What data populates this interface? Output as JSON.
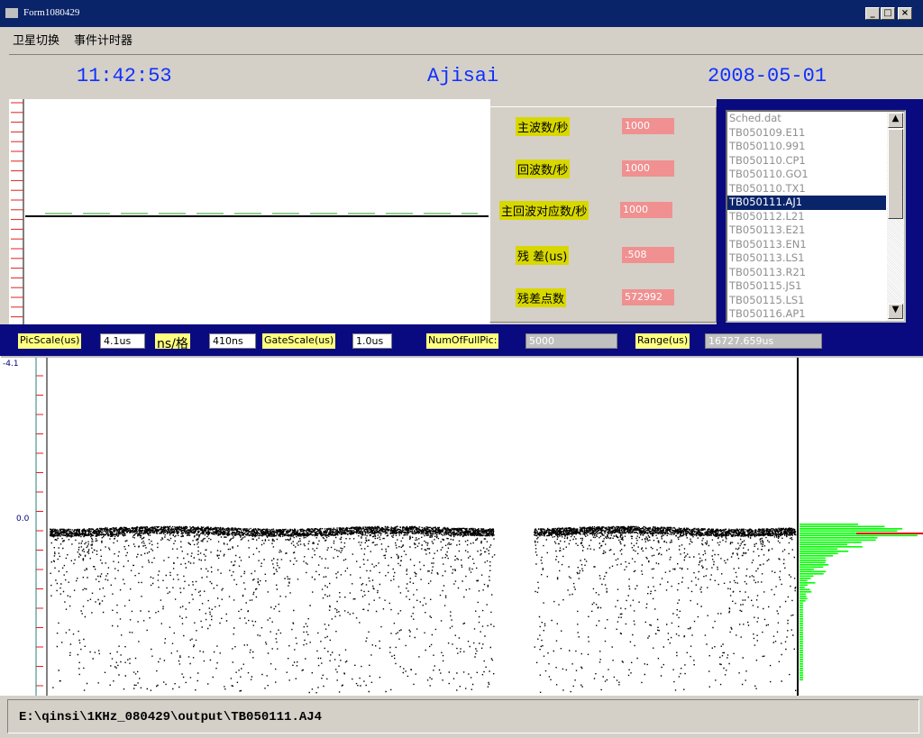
{
  "window": {
    "title": "Form1080429"
  },
  "menu": [
    "卫星切换",
    "事件计时器"
  ],
  "header": {
    "time": "11:42:53",
    "satellite": "Ajisai",
    "date": "2008-05-01"
  },
  "info": [
    {
      "label": "主波数/秒",
      "value": "1000"
    },
    {
      "label": "回波数/秒",
      "value": "1000"
    },
    {
      "label": "主回波对应数/秒",
      "value": "1000"
    },
    {
      "label": "残 差(us)",
      "value": ".508"
    },
    {
      "label": "残差点数",
      "value": "572992"
    }
  ],
  "files": [
    "Sched.dat",
    "TB050109.E11",
    "TB050110.991",
    "TB050110.CP1",
    "TB050110.GO1",
    "TB050110.TX1",
    "TB050111.AJ1",
    "TB050112.L21",
    "TB050113.E21",
    "TB050113.EN1",
    "TB050113.LS1",
    "TB050113.R21",
    "TB050115.JS1",
    "TB050115.LS1",
    "TB050116.AP1"
  ],
  "selected_file": 6,
  "settings": [
    {
      "label": "PicScale(us)",
      "value": "4.1us"
    },
    {
      "label": "ns/格",
      "value": "410ns"
    },
    {
      "label": "GateScale(us)",
      "value": "1.0us"
    },
    {
      "label": "NumOfFullPic:",
      "value": "5000"
    },
    {
      "label": "Range(us)",
      "value": "16727.659us"
    }
  ],
  "plot": {
    "top_label": "-4.1",
    "zero_label": "0.0"
  },
  "status": "E:\\qinsi\\1KHz_080429\\output\\TB050111.AJ4"
}
